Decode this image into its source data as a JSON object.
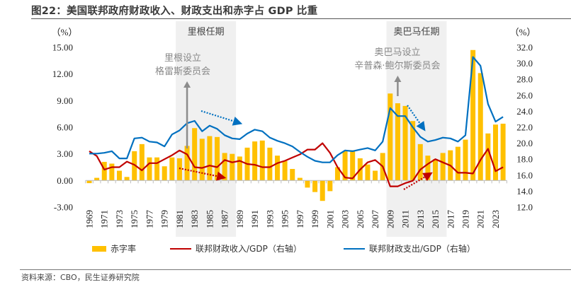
{
  "title": "图22：美国联邦政府财政收入、财政支出和赤字占 GDP 比重",
  "source": "资料来源：CBO，民生证券研究院",
  "colors": {
    "deficit": "#FFC000",
    "revenue": "#C00000",
    "outlays": "#0070C0",
    "shade": "#F0F0F0",
    "annotation_arrow": "#8C8C8C"
  },
  "chart_data": {
    "type": "bar+line",
    "title": "美国联邦政府财政收入、财政支出和赤字占 GDP 比重",
    "left_axis": {
      "unit_label": "（%）",
      "range": [
        -3,
        15
      ],
      "ticks": [
        "-3.00",
        "0.00",
        "3.00",
        "6.00",
        "9.00",
        "12.00",
        "15.00"
      ],
      "tick_values": [
        -3,
        0,
        3,
        6,
        9,
        12,
        15
      ]
    },
    "right_axis": {
      "unit_label": "（%）",
      "range": [
        12,
        32
      ],
      "ticks": [
        "12.0",
        "14.0",
        "16.0",
        "18.0",
        "20.0",
        "22.0",
        "24.0",
        "26.0",
        "28.0",
        "30.0",
        "32.0"
      ],
      "tick_values": [
        12,
        14,
        16,
        18,
        20,
        22,
        24,
        26,
        28,
        30,
        32
      ]
    },
    "x": [
      1969,
      1970,
      1971,
      1972,
      1973,
      1974,
      1975,
      1976,
      1977,
      1978,
      1979,
      1980,
      1981,
      1982,
      1983,
      1984,
      1985,
      1986,
      1987,
      1988,
      1989,
      1990,
      1991,
      1992,
      1993,
      1994,
      1995,
      1996,
      1997,
      1998,
      1999,
      2000,
      2001,
      2002,
      2003,
      2004,
      2005,
      2006,
      2007,
      2008,
      2009,
      2010,
      2011,
      2012,
      2013,
      2014,
      2015,
      2016,
      2017,
      2018,
      2019,
      2020,
      2021,
      2022,
      2023,
      2024
    ],
    "x_tick_labels": [
      "1969",
      "1971",
      "1973",
      "1975",
      "1977",
      "1979",
      "1981",
      "1983",
      "1985",
      "1987",
      "1989",
      "1991",
      "1993",
      "1995",
      "1997",
      "1999",
      "2001",
      "2003",
      "2005",
      "2007",
      "2009",
      "2011",
      "2013",
      "2015",
      "2017",
      "2019",
      "2021",
      "2023"
    ],
    "series": [
      {
        "name": "赤字率",
        "axis": "left",
        "type": "bar",
        "values": [
          -0.3,
          0.3,
          2.1,
          1.9,
          1.1,
          0.4,
          3.3,
          4.1,
          2.6,
          2.6,
          1.6,
          2.6,
          2.5,
          3.9,
          5.9,
          4.7,
          5.0,
          4.9,
          3.1,
          3.0,
          2.7,
          3.7,
          4.4,
          4.5,
          3.7,
          2.8,
          2.2,
          1.3,
          0.3,
          -0.8,
          -1.3,
          -2.3,
          -1.2,
          1.5,
          3.3,
          3.4,
          2.5,
          1.8,
          1.1,
          3.1,
          9.8,
          8.7,
          8.4,
          6.7,
          4.1,
          2.8,
          2.4,
          3.1,
          3.4,
          3.8,
          4.6,
          14.7,
          12.1,
          5.3,
          6.3,
          6.4
        ]
      },
      {
        "name": "联邦财政收入/GDP（右轴）",
        "axis": "right",
        "type": "line",
        "values": [
          19.0,
          18.4,
          16.7,
          17.0,
          17.0,
          17.7,
          17.3,
          16.6,
          17.5,
          17.5,
          18.0,
          18.5,
          19.1,
          18.6,
          17.0,
          16.9,
          17.2,
          17.0,
          17.9,
          17.6,
          17.8,
          17.4,
          17.3,
          17.0,
          17.0,
          17.5,
          17.8,
          18.2,
          18.6,
          19.2,
          19.2,
          20.0,
          18.8,
          17.0,
          15.7,
          15.6,
          16.7,
          17.6,
          17.9,
          17.1,
          14.6,
          14.6,
          15.0,
          15.3,
          16.7,
          17.4,
          18.0,
          17.6,
          17.2,
          16.3,
          16.3,
          16.2,
          17.9,
          19.3,
          16.5,
          17.0
        ]
      },
      {
        "name": "联邦财政支出/GDP（右轴）",
        "axis": "right",
        "type": "line",
        "values": [
          18.7,
          18.7,
          18.8,
          19.0,
          18.1,
          18.1,
          20.6,
          20.7,
          20.2,
          20.1,
          19.6,
          21.1,
          21.6,
          22.5,
          22.8,
          21.5,
          22.2,
          21.8,
          21.0,
          20.6,
          20.5,
          21.2,
          21.7,
          21.5,
          20.7,
          20.3,
          20.0,
          19.6,
          18.9,
          18.3,
          17.8,
          17.6,
          17.6,
          18.5,
          19.1,
          19.0,
          19.2,
          19.4,
          19.1,
          20.2,
          24.4,
          23.4,
          23.4,
          22.0,
          20.8,
          20.2,
          20.4,
          20.7,
          20.6,
          20.2,
          21.0,
          30.8,
          29.7,
          24.9,
          22.7,
          23.3
        ]
      }
    ],
    "shaded_periods": [
      {
        "label": "里根任期",
        "start": 1981,
        "end": 1988
      },
      {
        "label": "奥巴马任期",
        "start": 2009,
        "end": 2016
      }
    ],
    "annotations": [
      {
        "lines": [
          "里根设立",
          "格雷斯委员会"
        ],
        "arrow_year": 1982
      },
      {
        "lines": [
          "奥巴马设立",
          "辛普森·鲍尔斯委员会"
        ],
        "arrow_year": 2010
      }
    ],
    "legend": [
      "赤字率",
      "联邦财政收入/GDP（右轴）",
      "联邦财政支出/GDP（右轴）"
    ],
    "legend_position": "bottom",
    "grid": false
  }
}
